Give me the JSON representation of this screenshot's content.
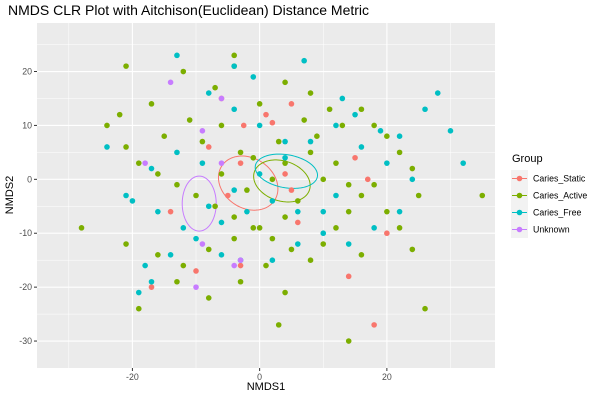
{
  "chart_data": {
    "type": "scatter",
    "title": "NMDS CLR Plot with Aitchison(Euclidean) Distance Metric",
    "xlabel": "NMDS1",
    "ylabel": "NMDS2",
    "xlim": [
      -35,
      37
    ],
    "ylim": [
      -35,
      29
    ],
    "x_ticks": [
      -20,
      0,
      20
    ],
    "x_tick_labels": [
      "-20",
      "0",
      "20"
    ],
    "y_ticks": [
      -30,
      -20,
      -10,
      0,
      10,
      20
    ],
    "y_tick_labels": [
      "-30",
      "-20",
      "-10",
      "0",
      "10",
      "20"
    ],
    "grid": true,
    "legend": {
      "title": "Group",
      "position": "right"
    },
    "series": [
      {
        "name": "Caries_Static",
        "color": "#F8766D",
        "ellipse": {
          "center": [
            -1.8,
            -0.7
          ],
          "semi_axes": [
            31.5,
            25
          ],
          "angle": -33
        },
        "points": [
          [
            -2.5,
            10
          ],
          [
            -6,
            15
          ],
          [
            5,
            14
          ],
          [
            2,
            10.5
          ],
          [
            4,
            1
          ],
          [
            5,
            -2
          ],
          [
            -8,
            6
          ],
          [
            -5,
            -3
          ],
          [
            15,
            4
          ],
          [
            17,
            0
          ],
          [
            20,
            -10
          ],
          [
            14,
            -18
          ],
          [
            18,
            -27
          ],
          [
            -10,
            -17
          ],
          [
            -14,
            -6
          ],
          [
            -3,
            3
          ],
          [
            6,
            -8
          ],
          [
            -3,
            -16
          ],
          [
            -17,
            -20
          ],
          [
            1,
            12
          ]
        ]
      },
      {
        "name": "Caries_Active",
        "color": "#7CAE00",
        "ellipse": {
          "center": [
            3.5,
            -0.3
          ],
          "semi_axes": [
            29,
            20
          ],
          "angle": -18
        },
        "points": [
          [
            -21,
            21
          ],
          [
            -22,
            12
          ],
          [
            -17,
            14
          ],
          [
            -12,
            20
          ],
          [
            -7,
            17
          ],
          [
            -4,
            23
          ],
          [
            -4,
            21
          ],
          [
            0,
            14
          ],
          [
            4,
            18
          ],
          [
            8,
            16
          ],
          [
            11,
            13
          ],
          [
            13,
            10
          ],
          [
            16,
            13
          ],
          [
            18,
            10
          ],
          [
            20,
            8
          ],
          [
            22,
            5
          ],
          [
            24,
            2
          ],
          [
            25,
            -3
          ],
          [
            -24,
            10
          ],
          [
            -21,
            6
          ],
          [
            -19,
            3
          ],
          [
            -16,
            1
          ],
          [
            -13,
            -1
          ],
          [
            -10,
            -3
          ],
          [
            -7,
            -5
          ],
          [
            -4,
            -7
          ],
          [
            -1,
            -9
          ],
          [
            2,
            -11
          ],
          [
            5,
            -13
          ],
          [
            8,
            -15
          ],
          [
            10,
            -12
          ],
          [
            12,
            -9
          ],
          [
            14,
            -6
          ],
          [
            16,
            -3
          ],
          [
            18,
            -1
          ],
          [
            20,
            -6
          ],
          [
            22,
            -9
          ],
          [
            24,
            -13
          ],
          [
            26,
            -24
          ],
          [
            35,
            -3
          ],
          [
            -28,
            -9
          ],
          [
            -21,
            -12
          ],
          [
            -16,
            -14
          ],
          [
            -12,
            -16
          ],
          [
            -8,
            -13
          ],
          [
            -4,
            -11
          ],
          [
            0,
            -9
          ],
          [
            4,
            -7
          ],
          [
            6,
            -4
          ],
          [
            -2,
            -2
          ],
          [
            2,
            0
          ],
          [
            4,
            3
          ],
          [
            -3,
            5
          ],
          [
            -9,
            7
          ],
          [
            -15,
            8
          ],
          [
            -11,
            11
          ],
          [
            -6,
            10
          ],
          [
            3,
            7
          ],
          [
            8,
            5
          ],
          [
            12,
            3
          ],
          [
            10,
            0
          ],
          [
            14,
            -1
          ],
          [
            16,
            -14
          ],
          [
            14,
            -30
          ],
          [
            3,
            -27
          ],
          [
            4,
            -21
          ],
          [
            1,
            -16
          ],
          [
            -3,
            -19
          ],
          [
            -8,
            -22
          ],
          [
            -13,
            -19
          ],
          [
            -19,
            -24
          ],
          [
            -6,
            1
          ],
          [
            -1,
            4
          ],
          [
            7,
            11
          ],
          [
            9,
            8
          ]
        ]
      },
      {
        "name": "Caries_Free",
        "color": "#00BFC4",
        "ellipse": {
          "center": [
            4.2,
            1.5
          ],
          "semi_axes": [
            31.5,
            16.5
          ],
          "angle": -10
        },
        "points": [
          [
            -13,
            23
          ],
          [
            -4,
            21
          ],
          [
            -1,
            19
          ],
          [
            7,
            22
          ],
          [
            13,
            15
          ],
          [
            15,
            12
          ],
          [
            19,
            9
          ],
          [
            22,
            8
          ],
          [
            26,
            13
          ],
          [
            28,
            16
          ],
          [
            30,
            9
          ],
          [
            32,
            3
          ],
          [
            -24,
            6
          ],
          [
            -21,
            -3
          ],
          [
            -16,
            -6
          ],
          [
            -12,
            -9
          ],
          [
            -8,
            -5
          ],
          [
            -4,
            -2
          ],
          [
            0,
            1
          ],
          [
            4,
            4
          ],
          [
            8,
            7
          ],
          [
            12,
            10
          ],
          [
            16,
            6
          ],
          [
            20,
            3
          ],
          [
            24,
            0
          ],
          [
            22,
            -6
          ],
          [
            18,
            -9
          ],
          [
            14,
            -12
          ],
          [
            10,
            -10
          ],
          [
            6,
            -6
          ],
          [
            2,
            -4
          ],
          [
            -2,
            -6
          ],
          [
            -6,
            -8
          ],
          [
            -10,
            -11
          ],
          [
            -14,
            -14
          ],
          [
            -18,
            -16
          ],
          [
            -17,
            -19
          ],
          [
            -19,
            -21
          ],
          [
            -6,
            -14
          ],
          [
            -3,
            -15
          ],
          [
            2,
            -15
          ],
          [
            6,
            -12
          ],
          [
            10,
            -6
          ],
          [
            12,
            -3
          ],
          [
            -8,
            16
          ],
          [
            -4,
            13
          ],
          [
            0,
            10
          ],
          [
            4,
            7
          ],
          [
            -9,
            3
          ],
          [
            -13,
            5
          ],
          [
            -17,
            2
          ],
          [
            -20,
            -4
          ]
        ]
      },
      {
        "name": "Unknown",
        "color": "#C77CFF",
        "ellipse": {
          "center": [
            -9.5,
            -4.5
          ],
          "semi_axes": [
            17,
            27.5
          ],
          "angle": 0
        },
        "points": [
          [
            -14,
            18
          ],
          [
            -9,
            9
          ],
          [
            -6,
            15
          ],
          [
            -6,
            3
          ],
          [
            -18,
            3
          ],
          [
            -9,
            -12
          ],
          [
            -10,
            -20
          ],
          [
            -3,
            -15
          ],
          [
            -4,
            -16
          ]
        ]
      }
    ]
  }
}
